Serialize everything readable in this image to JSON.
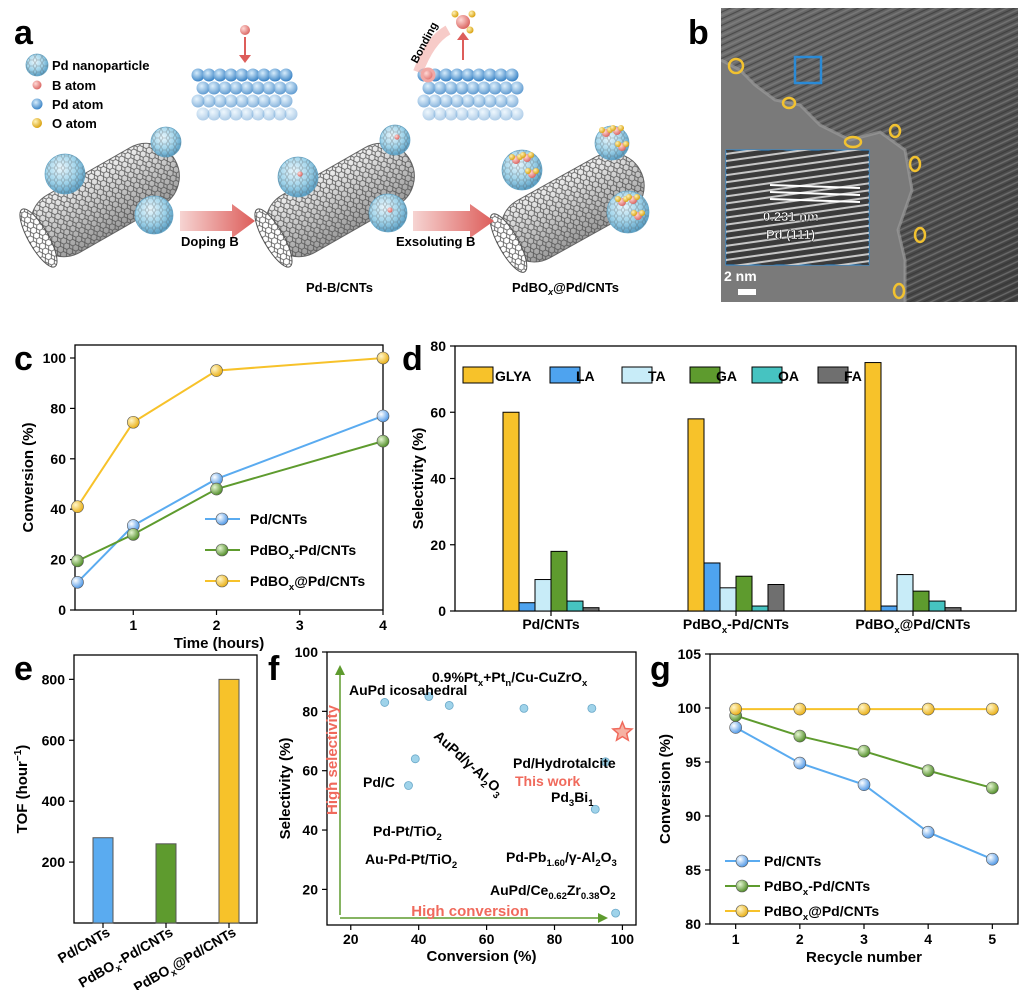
{
  "panel_letters": {
    "a": "a",
    "b": "b",
    "c": "c",
    "d": "d",
    "e": "e",
    "f": "f",
    "g": "g"
  },
  "schematic": {
    "legend": [
      {
        "label": "Pd nanoparticle",
        "icon": "pd-nanoparticle-icon",
        "color": "#9fd3ea"
      },
      {
        "label": "B atom",
        "icon": "b-atom-icon",
        "color": "#e58a88"
      },
      {
        "label": "Pd atom",
        "icon": "pd-atom-icon",
        "color": "#5aa7e0"
      },
      {
        "label": "O atom",
        "icon": "o-atom-icon",
        "color": "#f2c230"
      }
    ],
    "step1": "Doping B",
    "step2": "Exsoluting B",
    "bonding": "Bonding",
    "stage_labels": [
      "Pd-B/CNTs",
      "PdBO"
    ],
    "stage3_tail": "@Pd/CNTs",
    "stage3_sub": "x"
  },
  "tem": {
    "lattice_spacing": "0.231 nm",
    "plane": "Pd (111)",
    "scalebar": "2 nm",
    "border_color": "#2a8ad6",
    "marker_color": "#f2c230"
  },
  "colors": {
    "pd_cnts": "#5aabf0",
    "pdbox_pd_cnts": "#5e9b2e",
    "pdbox_at_pd_cnts": "#f7c22a",
    "glya": "#f7c22a",
    "la": "#4ea3ef",
    "ta": "#c8ecf8",
    "ga": "#5e9b2e",
    "oa": "#46c3c1",
    "fa": "#6f6f6f",
    "guide": "#5e9b2e",
    "highlight": "#f06a5c"
  },
  "chart_data": [
    {
      "panel": "c",
      "type": "line",
      "xlabel": "Time (hours)",
      "ylabel": "Conversion (%)",
      "xlim": [
        0.3,
        4.0
      ],
      "ylim": [
        0,
        100
      ],
      "xticks": [
        1,
        2,
        3,
        4
      ],
      "yticks": [
        0,
        20,
        40,
        60,
        80,
        100
      ],
      "x": [
        0.33,
        1,
        2,
        4
      ],
      "series": [
        {
          "name": "Pd/CNTs",
          "values": [
            11,
            33.5,
            52,
            77
          ]
        },
        {
          "name": "PdBOx-Pd/CNTs",
          "values": [
            19.5,
            30,
            48,
            67
          ]
        },
        {
          "name": "PdBOx@Pd/CNTs",
          "values": [
            41,
            74.5,
            95,
            100
          ]
        }
      ],
      "legend": [
        {
          "pre": "Pd/CNTs",
          "sub": "",
          "post": ""
        },
        {
          "pre": "PdBO",
          "sub": "x",
          "post": "-Pd/CNTs"
        },
        {
          "pre": "PdBO",
          "sub": "x",
          "post": "@Pd/CNTs"
        }
      ]
    },
    {
      "panel": "d",
      "type": "bar",
      "ylabel": "Selectivity (%)",
      "ylim": [
        0,
        80
      ],
      "yticks": [
        0,
        20,
        40,
        60,
        80
      ],
      "categories": [
        {
          "pre": "Pd/CNTs",
          "sub": "",
          "post": ""
        },
        {
          "pre": "PdBO",
          "sub": "x",
          "post": "-Pd/CNTs"
        },
        {
          "pre": "PdBO",
          "sub": "x",
          "post": "@Pd/CNTs"
        }
      ],
      "series": [
        {
          "name": "GLYA",
          "values": [
            60,
            58,
            75
          ]
        },
        {
          "name": "LA",
          "values": [
            2.5,
            14.5,
            1.5
          ]
        },
        {
          "name": "TA",
          "values": [
            9.5,
            7,
            11
          ]
        },
        {
          "name": "GA",
          "values": [
            18,
            10.5,
            6
          ]
        },
        {
          "name": "OA",
          "values": [
            3,
            1.5,
            3
          ]
        },
        {
          "name": "FA",
          "values": [
            1,
            8,
            1
          ]
        }
      ]
    },
    {
      "panel": "e",
      "type": "bar",
      "ylabel_pre": "TOF (hour",
      "ylabel_sup": "−1",
      "ylabel_post": ")",
      "ylim": [
        0,
        880
      ],
      "yticks": [
        200,
        400,
        600,
        800
      ],
      "categories": [
        {
          "pre": "Pd/CNTs",
          "sub": "",
          "post": ""
        },
        {
          "pre": "PdBO",
          "sub": "x",
          "post": "-Pd/CNTs"
        },
        {
          "pre": "PdBO",
          "sub": "x",
          "post": "@Pd/CNTs"
        }
      ],
      "values": [
        280,
        260,
        800
      ]
    },
    {
      "panel": "f",
      "type": "scatter",
      "xlabel": "Conversion (%)",
      "ylabel": "Selectivity (%)",
      "xlim": [
        13,
        104
      ],
      "ylim": [
        8,
        100
      ],
      "xticks": [
        20,
        40,
        60,
        80,
        100
      ],
      "yticks": [
        20,
        40,
        60,
        80,
        100
      ],
      "axis_arrow_y": "High selectivity",
      "axis_arrow_x": "High conversion",
      "points": [
        {
          "label": "Pd/C",
          "x": 30,
          "y": 83
        },
        {
          "label": "AuPd icosahedral",
          "x": 43,
          "y": 85
        },
        {
          "label": "AuPd/γ-Al2O3",
          "x": 49,
          "y": 82
        },
        {
          "label": "Pd-Pt/TiO2",
          "x": 39,
          "y": 64
        },
        {
          "label": "Au-Pd-Pt/TiO2",
          "x": 37,
          "y": 55
        },
        {
          "label": "Pd/Hydrotalcite",
          "x": 71,
          "y": 81
        },
        {
          "label": "0.9%Ptx+Ptn/Cu-CuZrOx",
          "x": 91,
          "y": 81
        },
        {
          "label": "Pd3Bi1",
          "x": 95,
          "y": 63
        },
        {
          "label": "Pd-Pb1.60/γ-Al2O3",
          "x": 92,
          "y": 47
        },
        {
          "label": "AuPd/Ce0.62Zr0.38O2",
          "x": 98,
          "y": 12
        }
      ],
      "this_work": {
        "label": "This work",
        "x": 100,
        "y": 73
      },
      "annotations": [
        {
          "pre": "AuPd icosahedral",
          "sub": "",
          "mid": "",
          "sub2": "",
          "post": ""
        },
        {
          "pre": "0.9%Pt",
          "sub": "x",
          "mid": "+Pt",
          "sub2": "n",
          "post": "/Cu-CuZrO",
          "sub3": "x"
        },
        {
          "pre": "Pd/C",
          "sub": "",
          "mid": "",
          "sub2": "",
          "post": ""
        },
        {
          "pre": "Pd/Hydrotalcite",
          "sub": "",
          "mid": "",
          "sub2": "",
          "post": ""
        },
        {
          "pre": "AuPd/γ-Al",
          "sub": "2",
          "mid": "O",
          "sub2": "3",
          "post": ""
        },
        {
          "pre": "Pd",
          "sub": "3",
          "mid": "Bi",
          "sub2": "1",
          "post": ""
        },
        {
          "pre": "Pd-Pt/TiO",
          "sub": "2",
          "mid": "",
          "sub2": "",
          "post": ""
        },
        {
          "pre": "Au-Pd-Pt/TiO",
          "sub": "2",
          "mid": "",
          "sub2": "",
          "post": ""
        },
        {
          "pre": "Pd-Pb",
          "sub": "1.60",
          "mid": "/γ-Al",
          "sub2": "2",
          "post": "O",
          "sub3": "3"
        },
        {
          "pre": "AuPd/Ce",
          "sub": "0.62",
          "mid": "Zr",
          "sub2": "0.38",
          "post": "O",
          "sub3": "2"
        }
      ]
    },
    {
      "panel": "g",
      "type": "line",
      "xlabel": "Recycle number",
      "ylabel": "Conversion (%)",
      "xlim": [
        0.6,
        5.4
      ],
      "ylim": [
        80,
        105
      ],
      "xticks": [
        1,
        2,
        3,
        4,
        5
      ],
      "yticks": [
        80,
        85,
        90,
        95,
        100,
        105
      ],
      "x": [
        1,
        2,
        3,
        4,
        5
      ],
      "series": [
        {
          "name": "Pd/CNTs",
          "values": [
            98.2,
            94.9,
            92.9,
            88.5,
            86
          ]
        },
        {
          "name": "PdBOx-Pd/CNTs",
          "values": [
            99.3,
            97.4,
            96,
            94.2,
            92.6
          ]
        },
        {
          "name": "PdBOx@Pd/CNTs",
          "values": [
            99.9,
            99.9,
            99.9,
            99.9,
            99.9
          ]
        }
      ],
      "legend": [
        {
          "pre": "Pd/CNTs",
          "sub": "",
          "post": ""
        },
        {
          "pre": "PdBO",
          "sub": "x",
          "post": "-Pd/CNTs"
        },
        {
          "pre": "PdBO",
          "sub": "x",
          "post": "@Pd/CNTs"
        }
      ]
    }
  ]
}
